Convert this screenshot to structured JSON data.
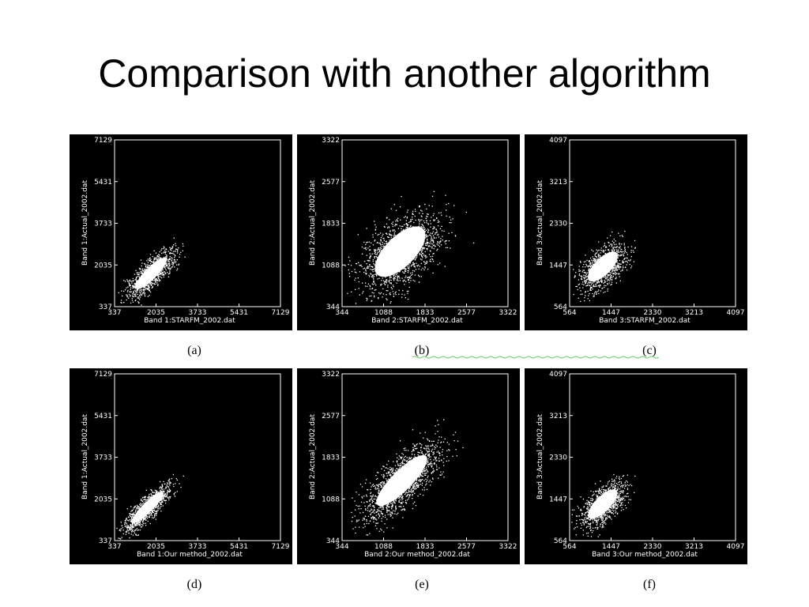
{
  "title": "Comparison with another algorithm",
  "panels": [
    {
      "caption": "(a)",
      "x_label": "Band 1:STARFM_2002.dat",
      "y_label": "Band 1:Actual_2002.dat",
      "xticks": [
        "337",
        "2035",
        "3733",
        "5431",
        "7129"
      ],
      "yticks": [
        "337",
        "2035",
        "3733",
        "5431",
        "7129"
      ]
    },
    {
      "caption": "(b)",
      "x_label": "Band 2:STARFM_2002.dat",
      "y_label": "Band 2:Actual_2002.dat",
      "xticks": [
        "344",
        "1088",
        "1833",
        "2577",
        "3322"
      ],
      "yticks": [
        "344",
        "1088",
        "1833",
        "2577",
        "3322"
      ]
    },
    {
      "caption": "(c)",
      "x_label": "Band 3:STARFM_2002.dat",
      "y_label": "Band 3:Actual_2002.dat",
      "xticks": [
        "564",
        "1447",
        "2330",
        "3213",
        "4097"
      ],
      "yticks": [
        "564",
        "1447",
        "2330",
        "3213",
        "4097"
      ]
    },
    {
      "caption": "(d)",
      "x_label": "Band 1:Our method_2002.dat",
      "y_label": "Band 1:Actual_2002.dat",
      "xticks": [
        "337",
        "2035",
        "3733",
        "5431",
        "7129"
      ],
      "yticks": [
        "337",
        "2035",
        "3733",
        "5431",
        "7129"
      ]
    },
    {
      "caption": "(e)",
      "x_label": "Band 2:Our method_2002.dat",
      "y_label": "Band 2:Actual_2002.dat",
      "xticks": [
        "344",
        "1088",
        "1833",
        "2577",
        "3322"
      ],
      "yticks": [
        "344",
        "1088",
        "1833",
        "2577",
        "3322"
      ]
    },
    {
      "caption": "(f)",
      "x_label": "Band 3:Our method_2002.dat",
      "y_label": "Band 3:Actual_2002.dat",
      "xticks": [
        "564",
        "1447",
        "2330",
        "3213",
        "4097"
      ],
      "yticks": [
        "564",
        "1447",
        "2330",
        "3213",
        "4097"
      ]
    }
  ]
}
